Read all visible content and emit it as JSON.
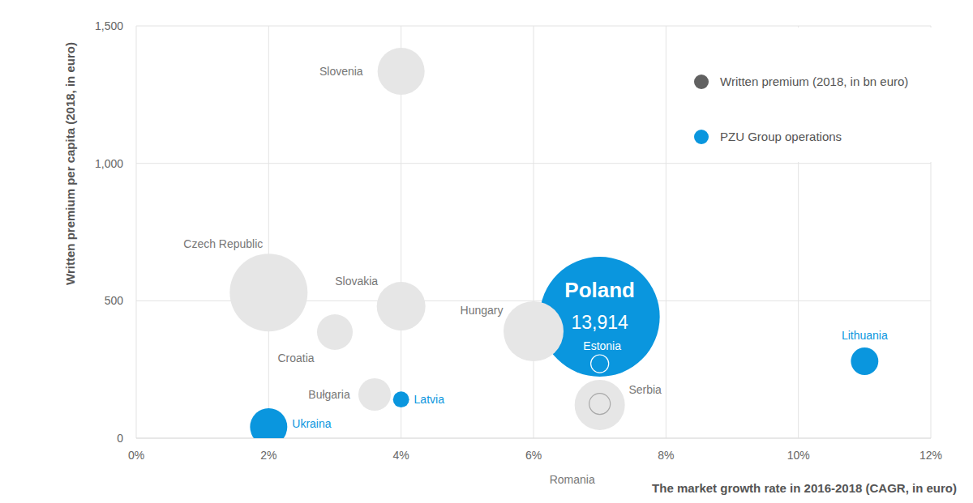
{
  "chart_data": {
    "type": "bubble",
    "x_label": "The market growth rate in 2016-2018 (CAGR, in euro)",
    "y_label": "Written premium per capita (2018, in euro)",
    "xlim": [
      0,
      12
    ],
    "ylim": [
      0,
      1500
    ],
    "xticks": [
      {
        "value": 0,
        "label": "0%"
      },
      {
        "value": 2,
        "label": "2%"
      },
      {
        "value": 4,
        "label": "4%"
      },
      {
        "value": 6,
        "label": "6%"
      },
      {
        "value": 8,
        "label": "8%"
      },
      {
        "value": 10,
        "label": "10%"
      },
      {
        "value": 12,
        "label": "12%"
      }
    ],
    "yticks": [
      0,
      500,
      {
        "value": 1000,
        "label": "1,000"
      },
      {
        "value": 1500,
        "label": "1,500"
      }
    ],
    "grid": true,
    "legend": "top-right",
    "series": [
      {
        "name": "Written premium (2018, in bn euro)",
        "color": "#e6e6e6",
        "labels": [
          "Slovenia",
          "Czech Republic",
          "Slovakia",
          "Croatia",
          "Hungary",
          "Bułgaria",
          "Romania",
          "Serbia"
        ],
        "x": [
          4,
          2,
          4,
          3,
          6,
          3.6,
          7,
          7
        ],
        "values": [
          1335,
          530,
          480,
          386,
          389,
          159,
          121,
          125
        ],
        "sizes": [
          2140,
          5850,
          2290,
          1230,
          3480,
          1020,
          2440,
          430
        ]
      },
      {
        "name": "PZU Group operations",
        "color": "#0a96de",
        "labels": [
          "Poland",
          "Estonia",
          "Latvia",
          "Ukraina",
          "Lithuania"
        ],
        "x": [
          7,
          7,
          4,
          2,
          11
        ],
        "values": [
          442,
          271,
          141,
          41,
          280
        ],
        "sizes": [
          13914,
          310,
          250,
          1340,
          730
        ],
        "size_labels": [
          "13,914",
          null,
          null,
          null,
          null
        ]
      }
    ]
  }
}
